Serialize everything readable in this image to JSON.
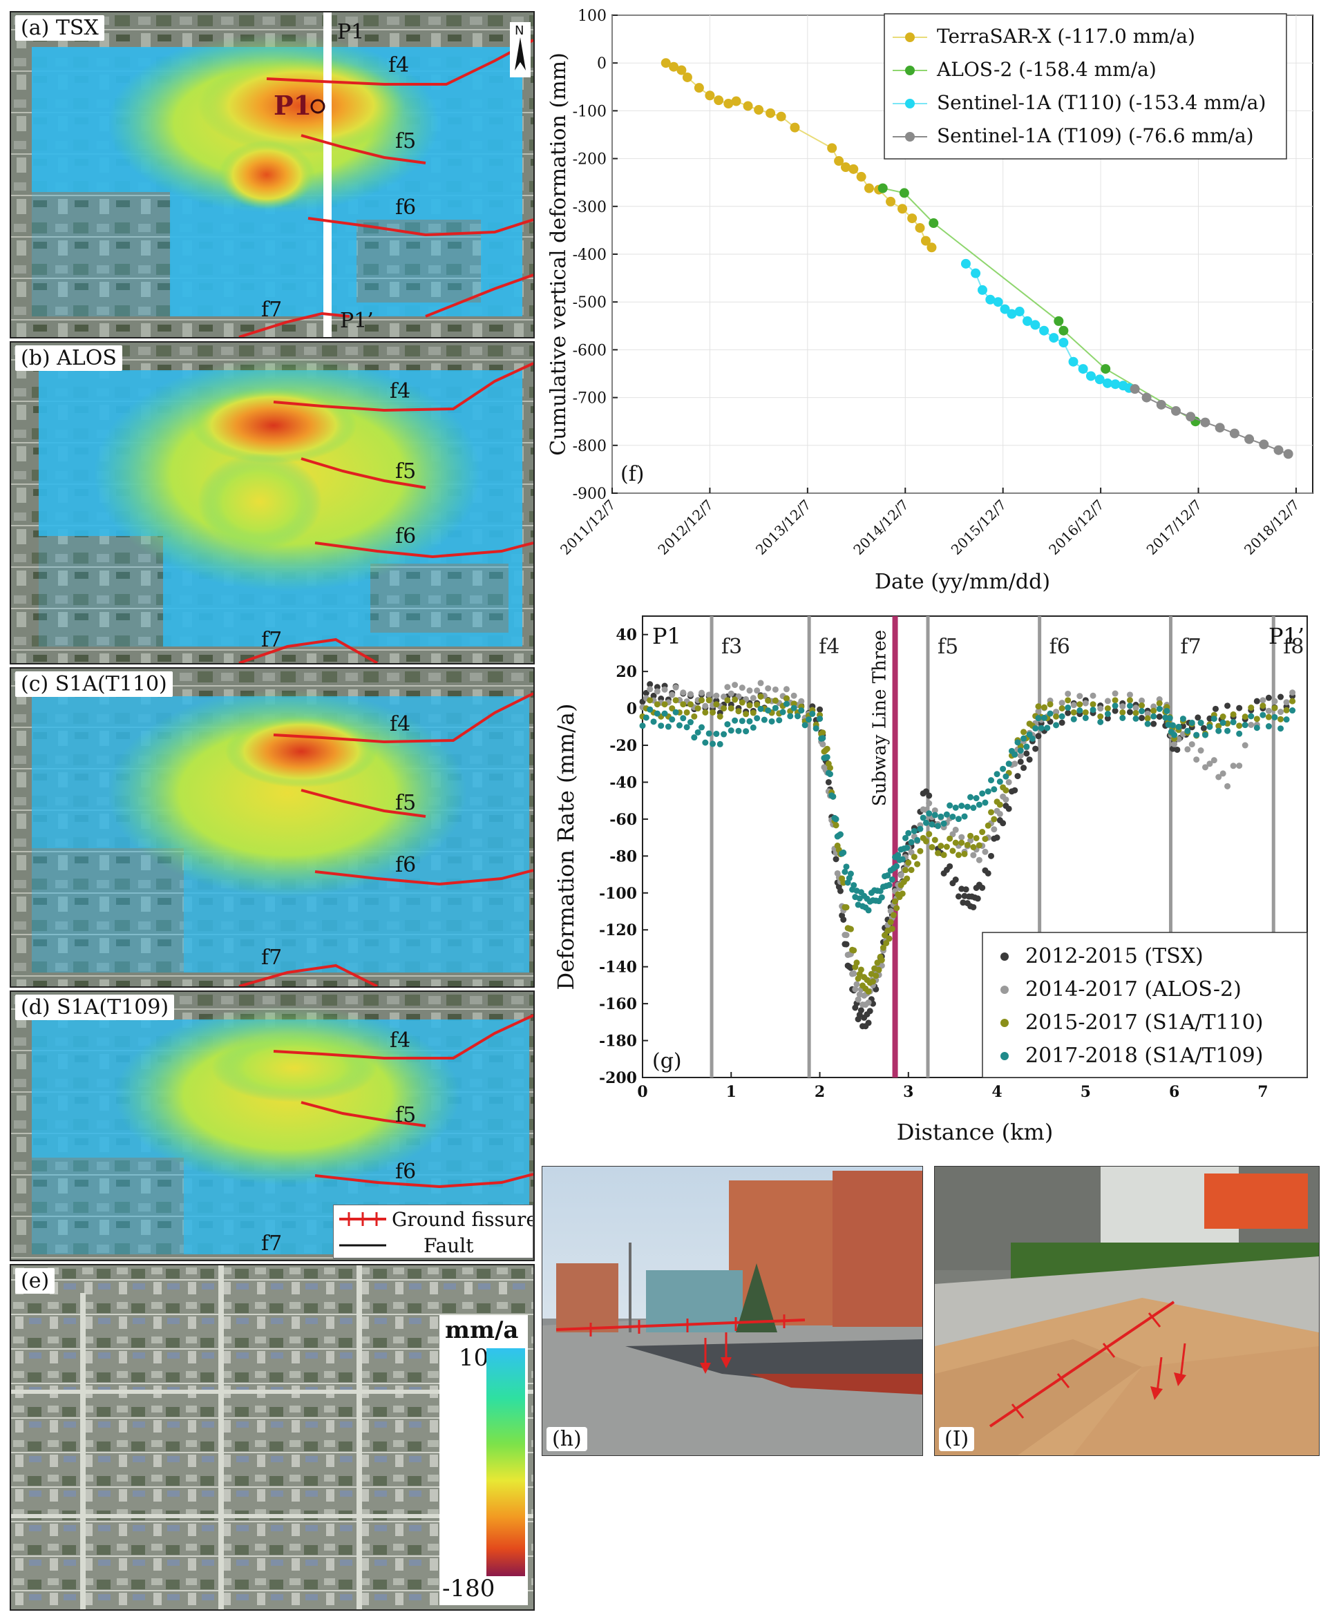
{
  "panels": [
    {
      "label": "(a) TSX"
    },
    {
      "label": "(b) ALOS"
    },
    {
      "label": "(c) S1A(T110)"
    },
    {
      "label": "(d) S1A(T109)"
    },
    {
      "label": "(e)"
    }
  ],
  "faults": {
    "f4": "f4",
    "f5": "f5",
    "f6": "f6",
    "f7": "f7"
  },
  "profile": {
    "start": "P1",
    "end": "P1’",
    "point": "P1"
  },
  "north_arrow": "N",
  "legend": {
    "ground_fissure": "Ground fissure",
    "fault": "Fault"
  },
  "colorbar": {
    "unit": "mm/a",
    "max_label": "10",
    "min_label": "-180",
    "max": 10,
    "min": -180,
    "colors": [
      "#31c2f0",
      "#2fe0a0",
      "#7ce24a",
      "#e8e834",
      "#f29a22",
      "#e34a1c",
      "#8a1a4a"
    ]
  },
  "colors": {
    "fissure": "#e02020",
    "profile_line": "#ffffff"
  },
  "chart_data": [
    {
      "type": "line",
      "panel_label": "(f)",
      "xlabel": "Date (yy/mm/dd)",
      "ylabel": "Cumulative vertical deformation (mm)",
      "x_ticks": [
        "2011/12/7",
        "2012/12/7",
        "2013/12/7",
        "2014/12/7",
        "2015/12/7",
        "2016/12/7",
        "2017/12/7",
        "2018/12/7"
      ],
      "ylim": [
        -900,
        100
      ],
      "y_ticks": [
        100,
        0,
        -100,
        -200,
        -300,
        -400,
        -500,
        -600,
        -700,
        -800,
        -900
      ],
      "legend_position": "top-right",
      "series": [
        {
          "name": "TerraSAR-X (-117.0 mm/a)",
          "color": "#d8b21e",
          "line_color": "#e9dc78",
          "x": [
            2012.48,
            2012.56,
            2012.64,
            2012.7,
            2012.82,
            2012.93,
            2013.02,
            2013.12,
            2013.2,
            2013.32,
            2013.43,
            2013.55,
            2013.66,
            2013.8,
            2014.18,
            2014.25,
            2014.32,
            2014.4,
            2014.48,
            2014.56,
            2014.66,
            2014.78,
            2014.9,
            2015.0,
            2015.08,
            2015.14,
            2015.2
          ],
          "y": [
            0,
            -8,
            -15,
            -30,
            -52,
            -68,
            -78,
            -85,
            -80,
            -90,
            -98,
            -105,
            -112,
            -135,
            -178,
            -205,
            -218,
            -222,
            -238,
            -262,
            -265,
            -290,
            -305,
            -325,
            -345,
            -372,
            -386
          ]
        },
        {
          "name": "ALOS-2 (-158.4 mm/a)",
          "color": "#3fa92c",
          "line_color": "#8fd66e",
          "x": [
            2014.7,
            2014.92,
            2015.22,
            2016.5,
            2016.55,
            2016.98,
            2017.9
          ],
          "y": [
            -262,
            -272,
            -335,
            -540,
            -560,
            -640,
            -750
          ]
        },
        {
          "name": "Sentinel-1A (T110) (-153.4 mm/a)",
          "color": "#21d8f2",
          "line_color": "#7ae6f6",
          "x": [
            2015.55,
            2015.65,
            2015.72,
            2015.8,
            2015.88,
            2015.95,
            2016.02,
            2016.1,
            2016.18,
            2016.26,
            2016.35,
            2016.45,
            2016.55,
            2016.65,
            2016.75,
            2016.83,
            2016.92,
            2017.0,
            2017.08,
            2017.16,
            2017.22
          ],
          "y": [
            -420,
            -440,
            -475,
            -495,
            -500,
            -515,
            -525,
            -520,
            -540,
            -548,
            -560,
            -575,
            -585,
            -625,
            -640,
            -655,
            -662,
            -670,
            -672,
            -675,
            -680
          ]
        },
        {
          "name": "Sentinel-1A (T109) (-76.6 mm/a)",
          "color": "#8a8a8a",
          "line_color": "#8a8a8a",
          "x": [
            2017.28,
            2017.4,
            2017.55,
            2017.7,
            2017.85,
            2018.0,
            2018.15,
            2018.3,
            2018.45,
            2018.6,
            2018.75,
            2018.85
          ],
          "y": [
            -682,
            -700,
            -715,
            -728,
            -740,
            -752,
            -763,
            -775,
            -787,
            -798,
            -810,
            -818
          ]
        }
      ]
    },
    {
      "type": "scatter",
      "panel_label": "(g)",
      "xlabel": "Distance (km)",
      "ylabel": "Deformation Rate (mm/a)",
      "xlim": [
        0,
        7.5
      ],
      "ylim": [
        -200,
        50
      ],
      "x_ticks": [
        0,
        1,
        2,
        3,
        4,
        5,
        6,
        7
      ],
      "y_ticks": [
        40,
        20,
        0,
        -20,
        -40,
        -60,
        -80,
        -100,
        -120,
        -140,
        -160,
        -180,
        -200
      ],
      "legend_position": "bottom-right",
      "vertical_lines": [
        {
          "label": "f3",
          "x": 0.78
        },
        {
          "label": "f4",
          "x": 1.88
        },
        {
          "label": "f5",
          "x": 3.22
        },
        {
          "label": "f6",
          "x": 4.48
        },
        {
          "label": "f7",
          "x": 5.96
        },
        {
          "label": "f8",
          "x": 7.12
        }
      ],
      "subway": {
        "label": "Subway Line Three",
        "x": 2.85,
        "color": "#b0306a"
      },
      "end_labels": {
        "left": "P1",
        "right": "P1’"
      },
      "series": [
        {
          "name": "2012-2015 (TSX)",
          "color": "#3a3a3a",
          "x": [
            0,
            0.25,
            0.5,
            0.75,
            1,
            1.25,
            1.5,
            1.75,
            2,
            2.1,
            2.2,
            2.3,
            2.4,
            2.5,
            2.6,
            2.7,
            2.8,
            2.9,
            3.0,
            3.2,
            3.4,
            3.6,
            3.7,
            3.8,
            4.0,
            4.2,
            4.4,
            4.6,
            5.0,
            5.5,
            5.9,
            6.0,
            6.2,
            6.6,
            7.0,
            7.4
          ],
          "y": [
            8,
            10,
            5,
            2,
            2,
            3,
            2,
            0,
            -5,
            -40,
            -90,
            -130,
            -160,
            -172,
            -160,
            -130,
            -110,
            -95,
            -78,
            -45,
            -85,
            -100,
            -105,
            -100,
            -70,
            -40,
            -20,
            -5,
            0,
            -2,
            -5,
            -20,
            -8,
            -3,
            0,
            8
          ]
        },
        {
          "name": "2014-2017 (ALOS-2)",
          "color": "#9a9a9a",
          "x": [
            0,
            0.25,
            0.5,
            0.75,
            1,
            1.25,
            1.5,
            1.75,
            2,
            2.1,
            2.2,
            2.3,
            2.4,
            2.5,
            2.6,
            2.7,
            2.8,
            2.9,
            3.0,
            3.2,
            3.4,
            3.6,
            3.8,
            4.0,
            4.2,
            4.4,
            4.6,
            5.0,
            5.5,
            5.9,
            6.0,
            6.3,
            6.6,
            7.0,
            7.4
          ],
          "y": [
            5,
            8,
            6,
            3,
            8,
            10,
            8,
            4,
            -10,
            -45,
            -85,
            -125,
            -150,
            -160,
            -150,
            -135,
            -112,
            -95,
            -80,
            -55,
            -60,
            -72,
            -80,
            -60,
            -30,
            -10,
            2,
            5,
            3,
            0,
            -15,
            -25,
            -40,
            0,
            5
          ]
        },
        {
          "name": "2015-2017 (S1A/T110)",
          "color": "#8a8f1a",
          "x": [
            0,
            0.25,
            0.5,
            0.75,
            1,
            1.25,
            1.5,
            1.75,
            2,
            2.1,
            2.2,
            2.3,
            2.4,
            2.5,
            2.6,
            2.7,
            2.8,
            2.9,
            3.0,
            3.2,
            3.4,
            3.6,
            3.8,
            4.0,
            4.2,
            4.4,
            4.6,
            5.0,
            5.5,
            5.9,
            6.0,
            6.3,
            6.6,
            7.0,
            7.4
          ],
          "y": [
            0,
            0,
            0,
            0,
            0,
            2,
            2,
            0,
            -8,
            -30,
            -70,
            -110,
            -138,
            -150,
            -148,
            -132,
            -118,
            -100,
            -88,
            -72,
            -75,
            -75,
            -72,
            -55,
            -25,
            -5,
            0,
            0,
            0,
            -2,
            -12,
            -10,
            -6,
            -3,
            0
          ]
        },
        {
          "name": "2017-2018 (S1A/T109)",
          "color": "#1f8a8a",
          "x": [
            0,
            0.25,
            0.5,
            0.75,
            1,
            1.25,
            1.5,
            1.75,
            2,
            2.1,
            2.2,
            2.3,
            2.4,
            2.5,
            2.6,
            2.7,
            2.8,
            2.9,
            3.0,
            3.2,
            3.4,
            3.6,
            3.8,
            4.0,
            4.2,
            4.4,
            4.6,
            5.0,
            5.5,
            5.9,
            6.0,
            6.3,
            6.6,
            7.0,
            7.4
          ],
          "y": [
            -5,
            -5,
            -8,
            -18,
            -12,
            -6,
            -2,
            -2,
            -10,
            -35,
            -65,
            -88,
            -100,
            -106,
            -104,
            -98,
            -90,
            -80,
            -72,
            -62,
            -58,
            -55,
            -50,
            -40,
            -25,
            -12,
            -5,
            -3,
            -3,
            -5,
            -10,
            -10,
            -10,
            -8,
            -5
          ]
        }
      ]
    }
  ],
  "photos": [
    {
      "label": "(h)"
    },
    {
      "label": "(I)"
    }
  ]
}
